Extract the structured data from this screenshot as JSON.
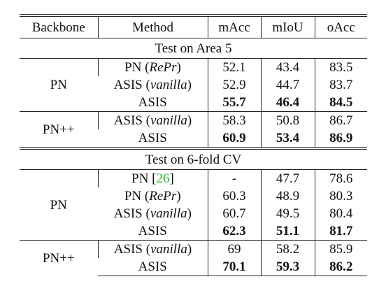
{
  "header": {
    "columns": [
      "Backbone",
      "Method",
      "mAcc",
      "mIoU",
      "oAcc"
    ]
  },
  "sections": [
    {
      "title": "Test on Area 5",
      "groups": [
        {
          "backbone": "PN",
          "rows": [
            {
              "method": [
                {
                  "text": "PN ("
                },
                {
                  "text": "RePr",
                  "style": "italic"
                },
                {
                  "text": ")"
                }
              ],
              "values": [
                52.1,
                43.4,
                83.5
              ],
              "bold": false
            },
            {
              "method": [
                {
                  "text": "ASIS ("
                },
                {
                  "text": "vanilla",
                  "style": "italic"
                },
                {
                  "text": ")"
                }
              ],
              "values": [
                52.9,
                44.7,
                83.7
              ],
              "bold": false
            },
            {
              "method": [
                {
                  "text": "ASIS"
                }
              ],
              "values": [
                55.7,
                46.4,
                84.5
              ],
              "bold": true
            }
          ]
        },
        {
          "backbone": "PN++",
          "rows": [
            {
              "method": [
                {
                  "text": "ASIS ("
                },
                {
                  "text": "vanilla",
                  "style": "italic"
                },
                {
                  "text": ")"
                }
              ],
              "values": [
                58.3,
                50.8,
                86.7
              ],
              "bold": false
            },
            {
              "method": [
                {
                  "text": "ASIS"
                }
              ],
              "values": [
                60.9,
                53.4,
                86.9
              ],
              "bold": true
            }
          ]
        }
      ]
    },
    {
      "title": "Test on 6-fold CV",
      "groups": [
        {
          "backbone": "PN",
          "rows": [
            {
              "method": [
                {
                  "text": "PN ["
                },
                {
                  "text": "26",
                  "style": "cite"
                },
                {
                  "text": "]"
                }
              ],
              "values": [
                "-",
                47.7,
                78.6
              ],
              "bold": false
            },
            {
              "method": [
                {
                  "text": "PN ("
                },
                {
                  "text": "RePr",
                  "style": "italic"
                },
                {
                  "text": ")"
                }
              ],
              "values": [
                60.3,
                48.9,
                80.3
              ],
              "bold": false
            },
            {
              "method": [
                {
                  "text": "ASIS ("
                },
                {
                  "text": "vanilla",
                  "style": "italic"
                },
                {
                  "text": ")"
                }
              ],
              "values": [
                60.7,
                49.5,
                80.4
              ],
              "bold": false
            },
            {
              "method": [
                {
                  "text": "ASIS"
                }
              ],
              "values": [
                62.3,
                51.1,
                81.7
              ],
              "bold": true
            }
          ]
        },
        {
          "backbone": "PN++",
          "rows": [
            {
              "method": [
                {
                  "text": "ASIS ("
                },
                {
                  "text": "vanilla",
                  "style": "italic"
                },
                {
                  "text": ")"
                }
              ],
              "values": [
                69.0,
                58.2,
                85.9
              ],
              "bold": false
            },
            {
              "method": [
                {
                  "text": "ASIS"
                }
              ],
              "values": [
                70.1,
                59.3,
                86.2
              ],
              "bold": true
            }
          ]
        }
      ]
    }
  ]
}
